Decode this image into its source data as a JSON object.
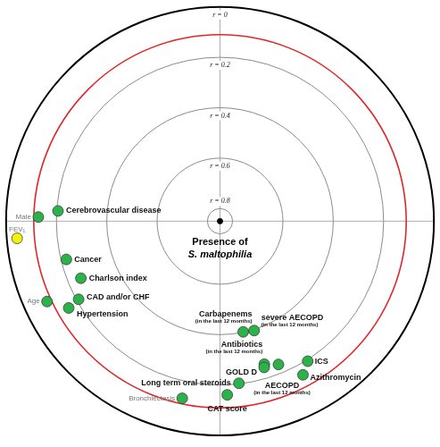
{
  "chart_data": {
    "type": "polar_scatter",
    "center": {
      "label": "Presence of S. maltophilia",
      "color": "#000000"
    },
    "rlim": [
      0,
      0.85
    ],
    "rticks": [
      {
        "value": 0,
        "label": "r = 0"
      },
      {
        "value": 0.2,
        "label": "r = 0.2"
      },
      {
        "value": 0.4,
        "label": "r = 0.4"
      },
      {
        "value": 0.6,
        "label": "r = 0.6"
      },
      {
        "value": 0.8,
        "label": "r = 0.8"
      }
    ],
    "reference_circle": {
      "r": 0.11,
      "color": "#e0262b"
    },
    "grid": true,
    "points": [
      {
        "name": "Cerebrovascular disease",
        "r": 0.205,
        "angle": 176.4,
        "color": "#2bb34a"
      },
      {
        "name": "Male",
        "r": 0.128,
        "angle": 178.7,
        "color": "#2bb34a"
      },
      {
        "name": "FEV₁",
        "r": 0.041,
        "angle": 184.8,
        "color": "#f2f20a"
      },
      {
        "name": "Cancer",
        "r": 0.221,
        "angle": 193.9,
        "color": "#2bb34a"
      },
      {
        "name": "Charlson index",
        "r": 0.253,
        "angle": 202.2,
        "color": "#2bb34a"
      },
      {
        "name": "Age",
        "r": 0.093,
        "angle": 204.8,
        "color": "#2bb34a"
      },
      {
        "name": "CAD and/or CHF",
        "r": 0.209,
        "angle": 208.8,
        "color": "#2bb34a"
      },
      {
        "name": "Hypertension",
        "r": 0.158,
        "angle": 209.7,
        "color": "#2bb34a"
      },
      {
        "name": "Carbapenems",
        "note": "(in the last 12 months)",
        "r": 0.403,
        "angle": 281.9,
        "color": "#2bb34a"
      },
      {
        "name": "severe AECOPD",
        "note": "(in the last 12 months)",
        "r": 0.397,
        "angle": 287.4,
        "color": "#2bb34a"
      },
      {
        "name": "Antibiotics",
        "note": "(in the last 12 months)",
        "r": 0.258,
        "angle": 287.3,
        "color": "#2bb34a"
      },
      {
        "name": "GOLD D",
        "r": 0.246,
        "angle": 286.9,
        "color": "#2bb34a"
      },
      {
        "name": "AECOPD",
        "note": "(in the last 12 months)",
        "r": 0.238,
        "angle": 292.3,
        "color": "#2bb34a"
      },
      {
        "name": "ICS",
        "r": 0.196,
        "angle": 302.2,
        "color": "#2bb34a"
      },
      {
        "name": "Azithromycin",
        "r": 0.159,
        "angle": 298.5,
        "color": "#2bb34a"
      },
      {
        "name": "Long term oral steroids",
        "r": 0.205,
        "angle": 276.7,
        "color": "#2bb34a"
      },
      {
        "name": "CAT score",
        "r": 0.163,
        "angle": 272.4,
        "color": "#2bb34a"
      },
      {
        "name": "Bronchiectasis",
        "r": 0.134,
        "angle": 257.9,
        "color": "#2bb34a"
      }
    ]
  }
}
